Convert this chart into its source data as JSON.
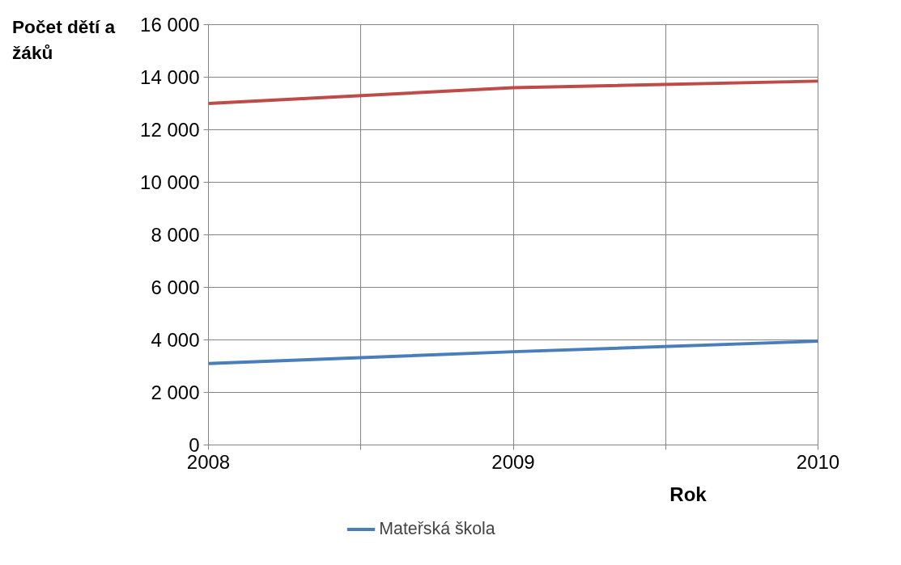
{
  "chart_data": {
    "type": "line",
    "xlabel": "Rok",
    "ylabel": "Počet dětí a žáků",
    "x": [
      2008,
      2009,
      2010
    ],
    "series": [
      {
        "name": "Mateřská škola",
        "color": "#4a7ebb",
        "values": [
          3100,
          3550,
          3950
        ]
      },
      {
        "color": "#be4b48",
        "values": [
          13000,
          13600,
          13850
        ]
      }
    ],
    "xlim": [
      2008,
      2010
    ],
    "xticks": [
      2008,
      {
        "value": 2008.5,
        "label": null
      },
      2009,
      {
        "value": 2009.5,
        "label": null
      },
      2010
    ],
    "ylim": [
      0,
      16000
    ],
    "yticks": [
      0,
      {
        "value": 2000,
        "label": "2 000"
      },
      {
        "value": 4000,
        "label": "4 000"
      },
      {
        "value": 6000,
        "label": "6 000"
      },
      {
        "value": 8000,
        "label": "8 000"
      },
      {
        "value": 10000,
        "label": "10 000"
      },
      {
        "value": 12000,
        "label": "12 000"
      },
      {
        "value": 14000,
        "label": "14 000"
      },
      {
        "value": 16000,
        "label": "16 000"
      }
    ],
    "grid": true,
    "legend": "bottom",
    "marker": "none",
    "line_style": "solid"
  }
}
